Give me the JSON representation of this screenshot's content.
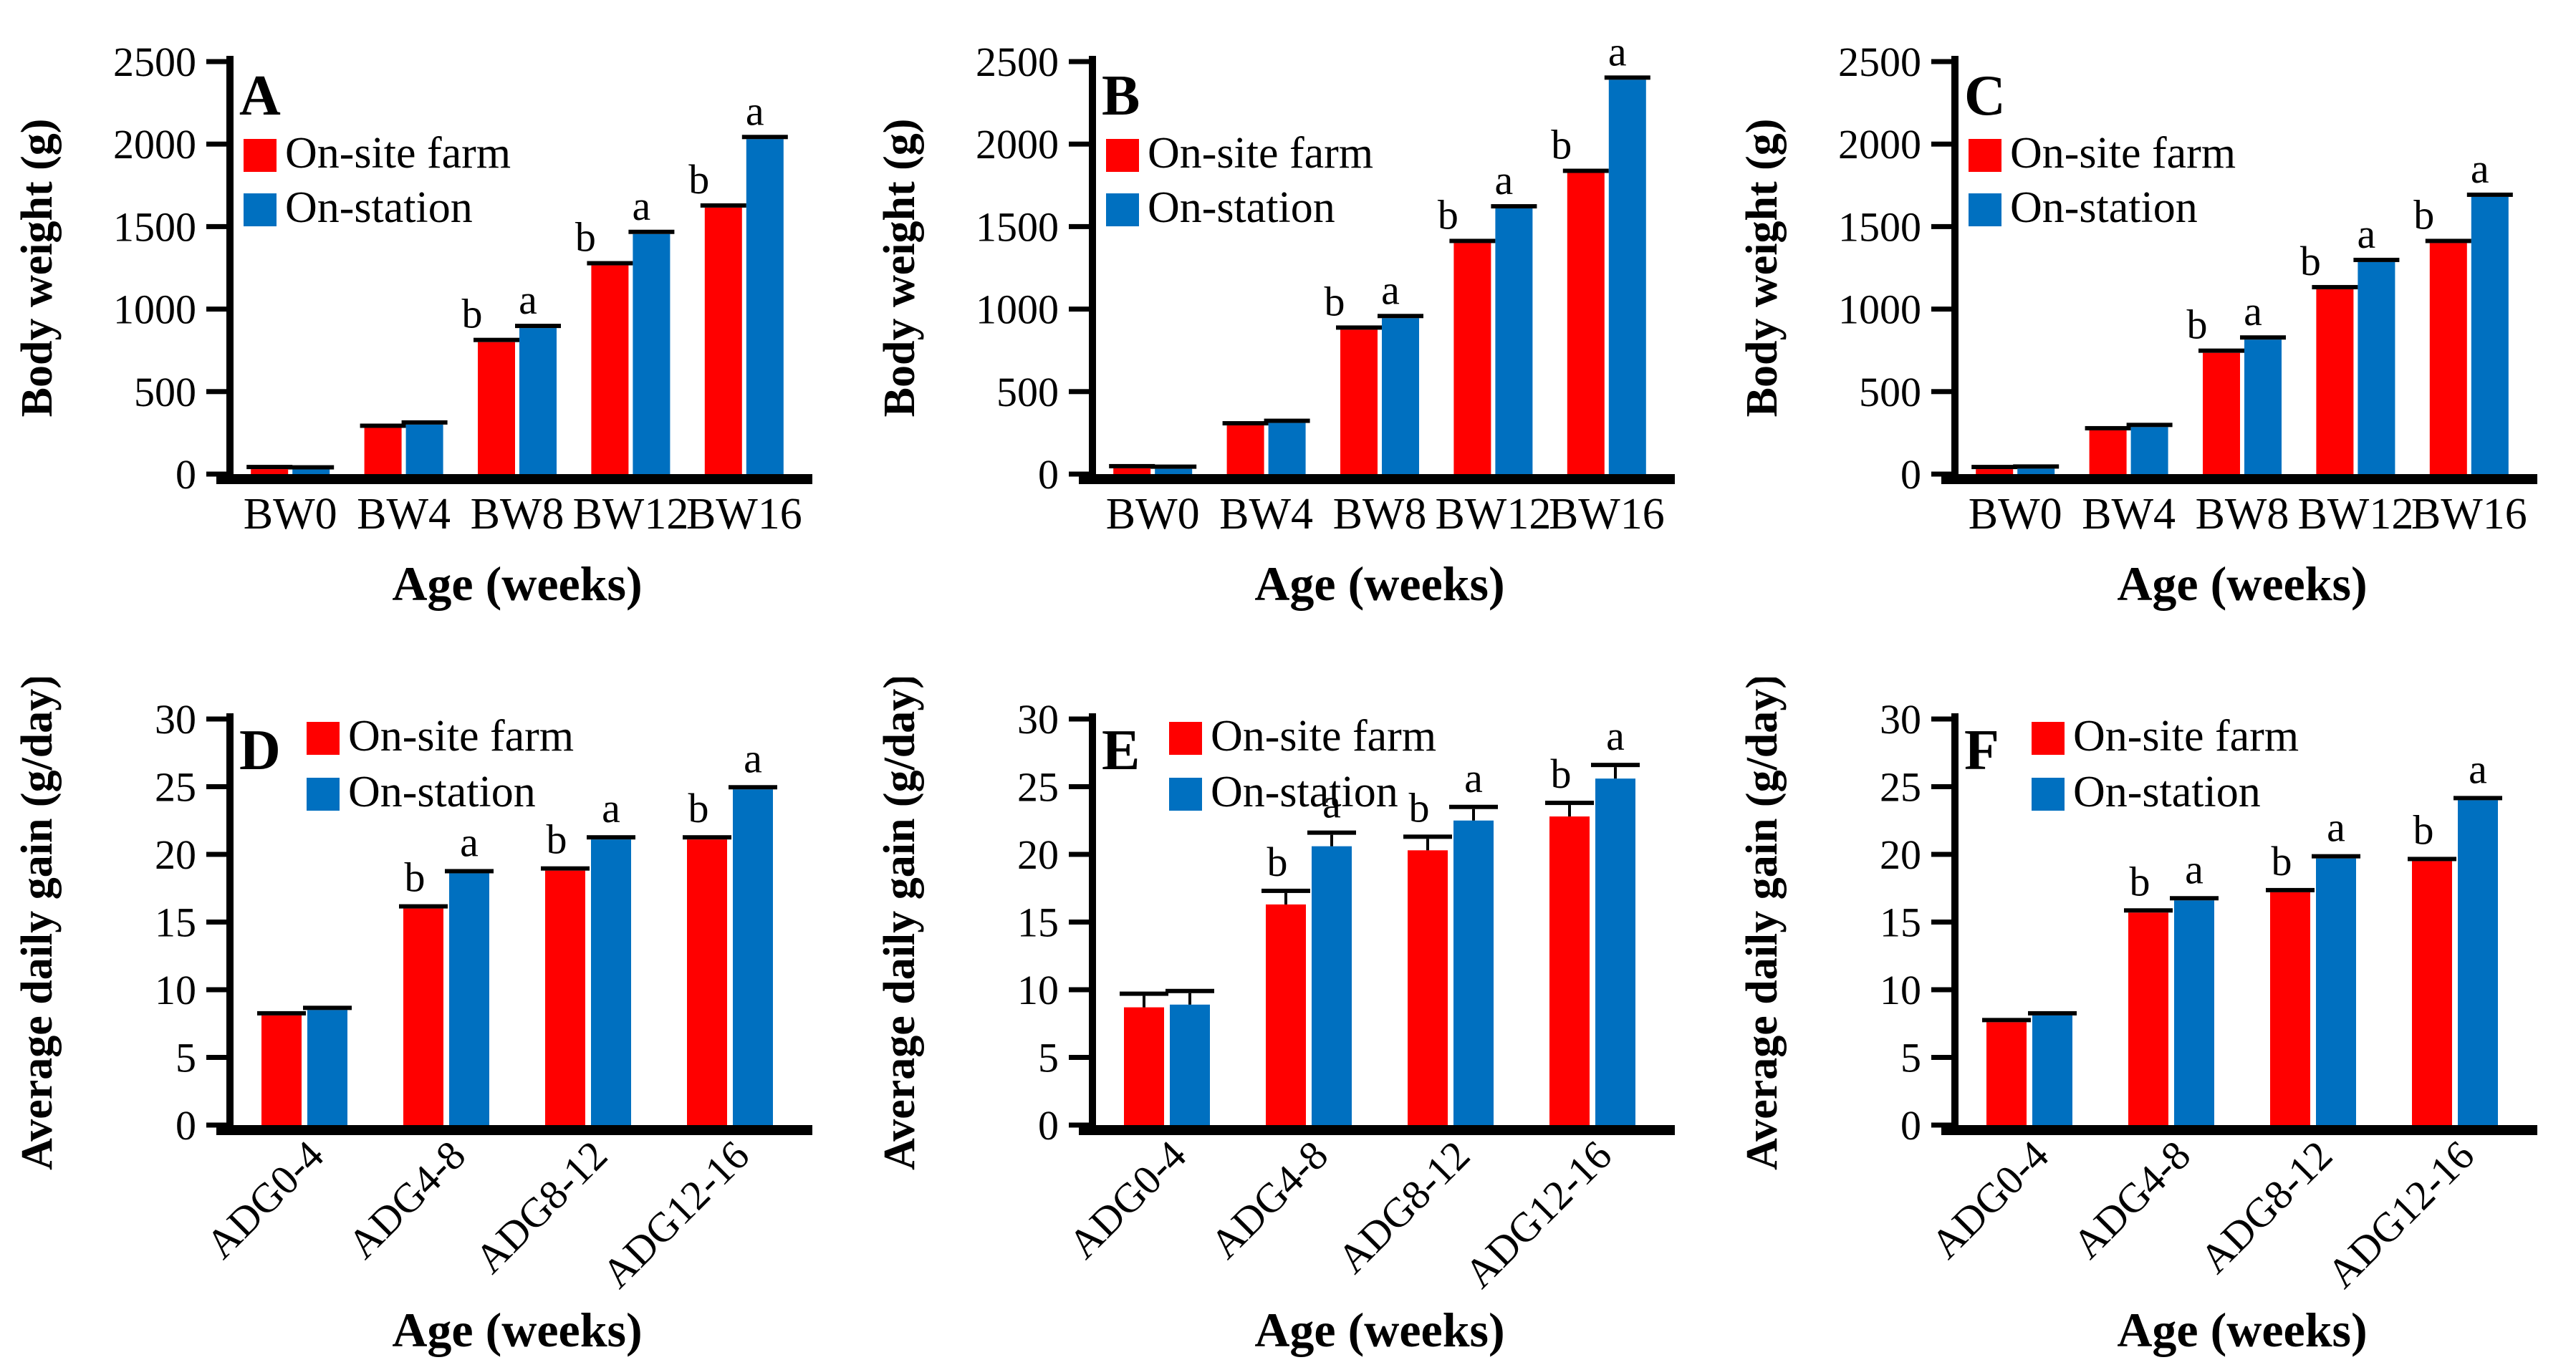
{
  "legend": {
    "items": [
      {
        "label": "On-site farm",
        "color": "#FF0000"
      },
      {
        "label": "On-station",
        "color": "#0070C0"
      }
    ]
  },
  "chart_data": [
    {
      "id": "A",
      "type": "bar",
      "ylabel": "Body weight (g)",
      "xlabel": "Age (weeks)",
      "ylim": [
        0,
        2500
      ],
      "yticks": [
        0,
        500,
        1000,
        1500,
        2000,
        2500
      ],
      "categories": [
        "BW0",
        "BW4",
        "BW8",
        "BW12",
        "BW16"
      ],
      "xtick_rotation": 0,
      "grid": false,
      "legend_position": "upper-left-inside",
      "error_caps": true,
      "error_whiskers": false,
      "series": [
        {
          "name": "On-site farm",
          "color": "#FF0000",
          "values": [
            30,
            280,
            800,
            1265,
            1615
          ],
          "sig_letters": [
            "",
            "",
            "b",
            "b",
            "b"
          ]
        },
        {
          "name": "On-station",
          "color": "#0070C0",
          "values": [
            28,
            300,
            885,
            1455,
            2030
          ],
          "sig_letters": [
            "",
            "",
            "a",
            "a",
            "a"
          ]
        }
      ]
    },
    {
      "id": "B",
      "type": "bar",
      "ylabel": "Body weight (g)",
      "xlabel": "Age (weeks)",
      "ylim": [
        0,
        2500
      ],
      "yticks": [
        0,
        500,
        1000,
        1500,
        2000,
        2500
      ],
      "categories": [
        "BW0",
        "BW4",
        "BW8",
        "BW12",
        "BW16"
      ],
      "xtick_rotation": 0,
      "grid": false,
      "legend_position": "upper-left-inside",
      "error_caps": true,
      "error_whiskers": false,
      "series": [
        {
          "name": "On-site farm",
          "color": "#FF0000",
          "values": [
            35,
            295,
            875,
            1400,
            1825
          ],
          "sig_letters": [
            "",
            "",
            "b",
            "b",
            "b"
          ]
        },
        {
          "name": "On-station",
          "color": "#0070C0",
          "values": [
            32,
            310,
            945,
            1610,
            2390
          ],
          "sig_letters": [
            "",
            "",
            "a",
            "a",
            "a"
          ]
        }
      ]
    },
    {
      "id": "C",
      "type": "bar",
      "ylabel": "Body weight (g)",
      "xlabel": "Age (weeks)",
      "ylim": [
        0,
        2500
      ],
      "yticks": [
        0,
        500,
        1000,
        1500,
        2000,
        2500
      ],
      "categories": [
        "BW0",
        "BW4",
        "BW8",
        "BW12",
        "BW16"
      ],
      "xtick_rotation": 0,
      "grid": false,
      "legend_position": "upper-left-inside",
      "error_caps": true,
      "error_whiskers": false,
      "series": [
        {
          "name": "On-site farm",
          "color": "#FF0000",
          "values": [
            30,
            265,
            735,
            1120,
            1400
          ],
          "sig_letters": [
            "",
            "",
            "b",
            "b",
            "b"
          ]
        },
        {
          "name": "On-station",
          "color": "#0070C0",
          "values": [
            33,
            285,
            815,
            1285,
            1680
          ],
          "sig_letters": [
            "",
            "",
            "a",
            "a",
            "a"
          ]
        }
      ]
    },
    {
      "id": "D",
      "type": "bar",
      "ylabel": "Average daily gain (g/day)",
      "xlabel": "Age (weeks)",
      "ylim": [
        0,
        30
      ],
      "yticks": [
        0,
        5,
        10,
        15,
        20,
        25,
        30
      ],
      "categories": [
        "ADG0-4",
        "ADG4-8",
        "ADG8-12",
        "ADG12-16"
      ],
      "xtick_rotation": 45,
      "grid": false,
      "legend_position": "upper-left-inside",
      "error_caps": true,
      "error_whiskers": false,
      "series": [
        {
          "name": "On-site farm",
          "color": "#FF0000",
          "values": [
            8.1,
            16.0,
            18.8,
            21.1
          ],
          "sig_letters": [
            "",
            "b",
            "b",
            "b"
          ]
        },
        {
          "name": "On-station",
          "color": "#0070C0",
          "values": [
            8.5,
            18.6,
            21.1,
            24.8
          ],
          "sig_letters": [
            "",
            "a",
            "a",
            "a"
          ]
        }
      ]
    },
    {
      "id": "E",
      "type": "bar",
      "ylabel": "Average daily gain (g/day)",
      "xlabel": "Age (weeks)",
      "ylim": [
        0,
        30
      ],
      "yticks": [
        0,
        5,
        10,
        15,
        20,
        25,
        30
      ],
      "categories": [
        "ADG0-4",
        "ADG4-8",
        "ADG8-12",
        "ADG12-16"
      ],
      "xtick_rotation": 45,
      "grid": false,
      "legend_position": "upper-left-inside",
      "error_caps": true,
      "error_whiskers": true,
      "series": [
        {
          "name": "On-site farm",
          "color": "#FF0000",
          "values": [
            8.7,
            16.3,
            20.3,
            22.8
          ],
          "sig_letters": [
            "",
            "b",
            "b",
            "b"
          ]
        },
        {
          "name": "On-station",
          "color": "#0070C0",
          "values": [
            8.9,
            20.6,
            22.5,
            25.6
          ],
          "sig_letters": [
            "",
            "a",
            "a",
            "a"
          ]
        }
      ]
    },
    {
      "id": "F",
      "type": "bar",
      "ylabel": "Average daily gain (g/day)",
      "xlabel": "Age (weeks)",
      "ylim": [
        0,
        30
      ],
      "yticks": [
        0,
        5,
        10,
        15,
        20,
        25,
        30
      ],
      "categories": [
        "ADG0-4",
        "ADG4-8",
        "ADG8-12",
        "ADG12-16"
      ],
      "xtick_rotation": 45,
      "grid": false,
      "legend_position": "upper-left-inside",
      "error_caps": true,
      "error_whiskers": false,
      "series": [
        {
          "name": "On-site farm",
          "color": "#FF0000",
          "values": [
            7.6,
            15.7,
            17.2,
            19.5
          ],
          "sig_letters": [
            "",
            "b",
            "b",
            "b"
          ]
        },
        {
          "name": "On-station",
          "color": "#0070C0",
          "values": [
            8.1,
            16.6,
            19.7,
            24.0
          ],
          "sig_letters": [
            "",
            "a",
            "a",
            "a"
          ]
        }
      ]
    }
  ]
}
